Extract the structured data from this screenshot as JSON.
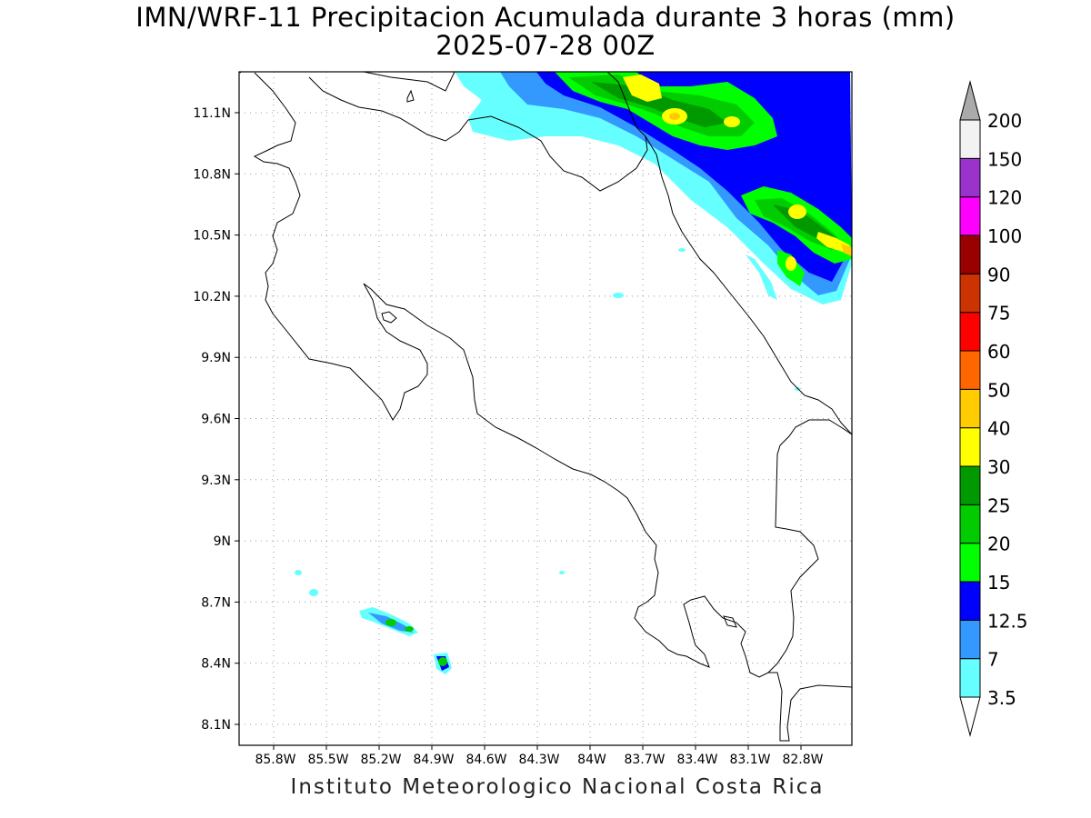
{
  "title": {
    "line1": "IMN/WRF-11 Precipitacion Acumulada durante 3 horas (mm)",
    "line2": "2025-07-28 00Z"
  },
  "footer": "Instituto Meteorologico Nacional Costa Rica",
  "axes": {
    "lat_labels": [
      "11.1N",
      "10.8N",
      "10.5N",
      "10.2N",
      "9.9N",
      "9.6N",
      "9.3N",
      "9N",
      "8.7N",
      "8.4N",
      "8.1N"
    ],
    "lon_labels": [
      "85.8W",
      "85.5W",
      "85.2W",
      "84.9W",
      "84.6W",
      "84.3W",
      "84W",
      "83.7W",
      "83.4W",
      "83.1W",
      "82.8W"
    ]
  },
  "colorbar": {
    "levels": [
      "3.5",
      "7",
      "12.5",
      "15",
      "20",
      "25",
      "30",
      "40",
      "50",
      "60",
      "75",
      "90",
      "100",
      "120",
      "150",
      "200"
    ],
    "colors": [
      "#66ffff",
      "#3399ff",
      "#0000ff",
      "#00ff00",
      "#00cc00",
      "#009900",
      "#ffff00",
      "#ffcc00",
      "#ff6600",
      "#ff0000",
      "#cc3300",
      "#990000",
      "#ff00ff",
      "#9933cc",
      "#f2f2f2",
      "#aaaaaa"
    ]
  }
}
